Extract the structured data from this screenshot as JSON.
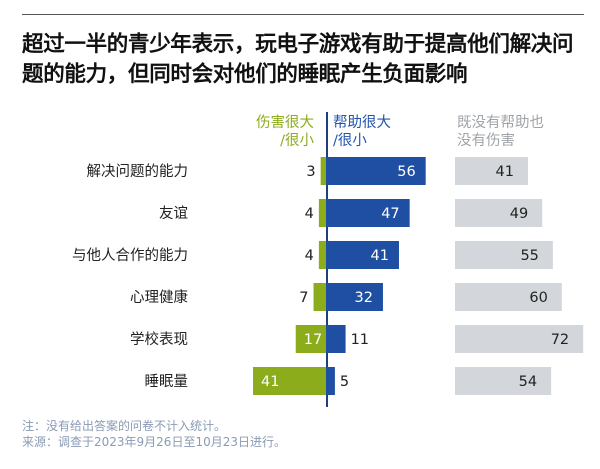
{
  "chart_data": {
    "type": "bar",
    "title": "超过一半的青少年表示，玩电子游戏有助于提高他们解决问题的能力，但同时会对他们的睡眠产生负面影响",
    "legend": {
      "harm": "伤害很大/很小",
      "help": "帮助很大/很小",
      "neither": "既没有帮助也没有伤害"
    },
    "legend_lines": {
      "harm": [
        "伤害很大",
        "/很小"
      ],
      "help": [
        "帮助很大",
        "/很小"
      ],
      "neither": [
        "既没有帮助也",
        "没有伤害"
      ]
    },
    "categories": [
      "解决问题的能力",
      "友谊",
      "与他人合作的能力",
      "心理健康",
      "学校表现",
      "睡眠量"
    ],
    "series": [
      {
        "name": "伤害很大/很小",
        "values": [
          3,
          4,
          4,
          7,
          17,
          41
        ]
      },
      {
        "name": "帮助很大/很小",
        "values": [
          56,
          47,
          41,
          32,
          11,
          5
        ]
      },
      {
        "name": "既没有帮助也没有伤害",
        "values": [
          41,
          49,
          55,
          60,
          72,
          54
        ]
      }
    ],
    "colors": {
      "harm": "#8cac1c",
      "help": "#1f4fa3",
      "neither": "#d3d6da"
    }
  },
  "notes": {
    "note": "注：没有给出答案的问卷不计入统计。",
    "source": "来源：调查于2023年9月26日至10月23日进行。"
  }
}
